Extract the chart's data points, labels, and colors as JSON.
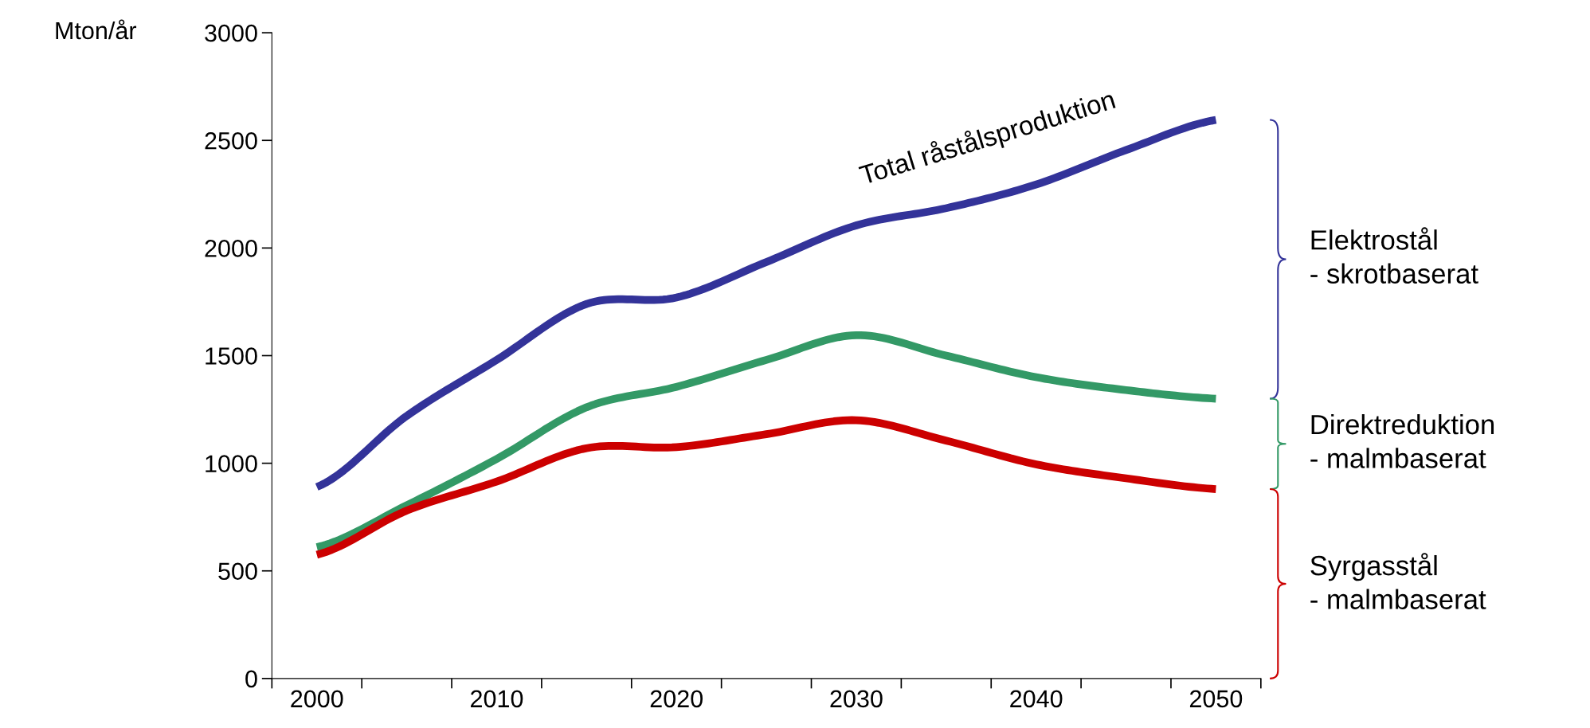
{
  "chart_data": {
    "type": "line",
    "ylabel": "Mton/år",
    "x": [
      2000,
      2005,
      2010,
      2015,
      2020,
      2025,
      2030,
      2035,
      2040,
      2045,
      2050
    ],
    "series": [
      {
        "name": "Total råstålsproduktion",
        "color": "#333399",
        "values": [
          890,
          1220,
          1480,
          1740,
          1770,
          1935,
          2105,
          2185,
          2295,
          2455,
          2595
        ]
      },
      {
        "color": "#339966",
        "values": [
          610,
          805,
          1020,
          1260,
          1355,
          1480,
          1595,
          1500,
          1400,
          1340,
          1300
        ]
      },
      {
        "color": "#cc0000",
        "values": [
          575,
          780,
          915,
          1070,
          1075,
          1135,
          1200,
          1105,
          995,
          930,
          880
        ]
      }
    ],
    "xlim": [
      1997.5,
      2052.5
    ],
    "xticks": [
      {
        "value": 1997.5,
        "label": null
      },
      2000,
      {
        "value": 2002.5,
        "label": null
      },
      {
        "value": 2007.5,
        "label": null
      },
      2010,
      {
        "value": 2012.5,
        "label": null
      },
      {
        "value": 2017.5,
        "label": null
      },
      2020,
      {
        "value": 2022.5,
        "label": null
      },
      {
        "value": 2027.5,
        "label": null
      },
      2030,
      {
        "value": 2032.5,
        "label": null
      },
      {
        "value": 2037.5,
        "label": null
      },
      2040,
      {
        "value": 2042.5,
        "label": null
      },
      {
        "value": 2047.5,
        "label": null
      },
      2050,
      {
        "value": 2052.5,
        "label": null
      }
    ],
    "ylim": [
      0,
      3000
    ],
    "yticks": [
      0,
      500,
      1000,
      1500,
      2000,
      2500,
      3000
    ],
    "grid": false,
    "legend": false,
    "marker": "none",
    "line_style": "solid",
    "annotations": [
      "Elektrostål\n- skrotbaserat",
      "Direktreduktion\n- malmbaserat",
      "Syrgasstål\n- malmbaserat"
    ]
  }
}
